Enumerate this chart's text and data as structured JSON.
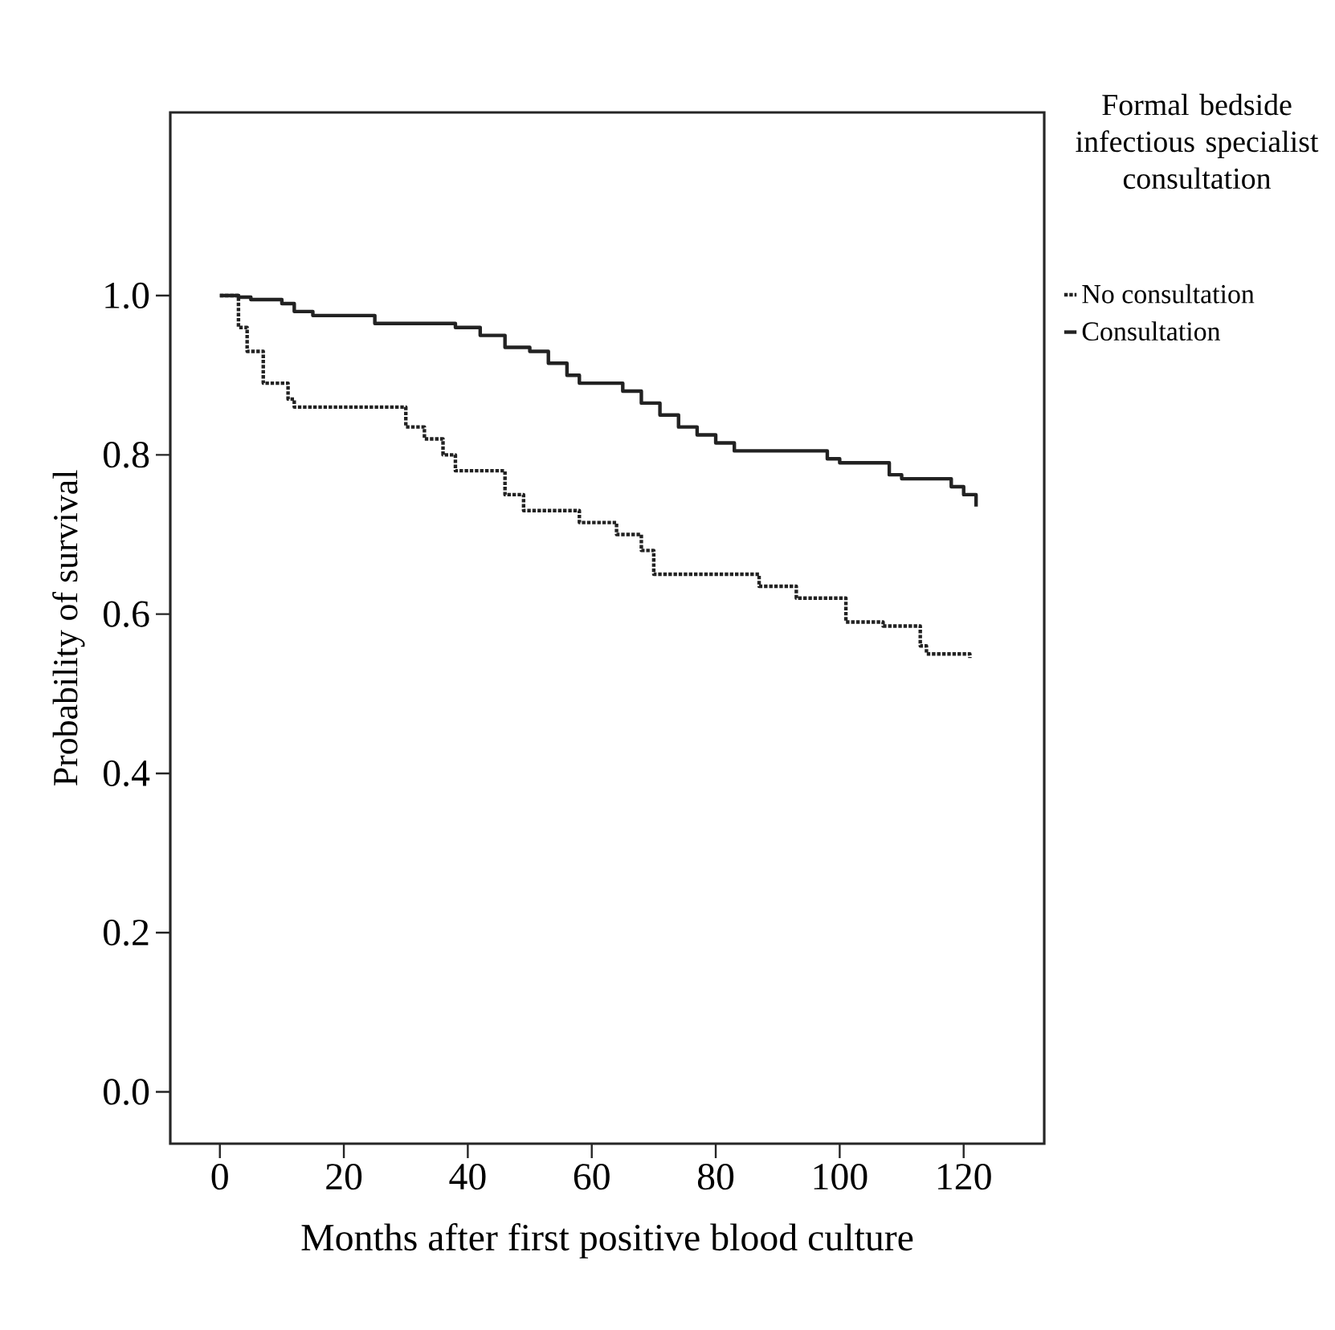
{
  "chart_data": {
    "type": "step",
    "xlabel": "Months after first positive blood culture",
    "ylabel": "Probability of survival",
    "legend_title": "Formal bedside infectious specialist consultation",
    "legend": "right",
    "xlim": [
      -8,
      133
    ],
    "ylim": [
      -0.065,
      1.23
    ],
    "xticks": [
      0,
      20,
      40,
      60,
      80,
      100,
      120
    ],
    "yticks": [
      {
        "value": 0,
        "label": "0.0"
      },
      {
        "value": 0.2,
        "label": "0.2"
      },
      {
        "value": 0.4,
        "label": "0.4"
      },
      {
        "value": 0.6,
        "label": "0.6"
      },
      {
        "value": 0.8,
        "label": "0.8"
      },
      {
        "value": 1,
        "label": "1.0"
      }
    ],
    "grid": false,
    "series": [
      {
        "name": "No consultation",
        "color": "#222222",
        "line_style": "dotted",
        "x": [
          0,
          3,
          4.4,
          7,
          11,
          12,
          30,
          33,
          36,
          38,
          46,
          49,
          58,
          64,
          68,
          70,
          87,
          93,
          101,
          107,
          113,
          114,
          121
        ],
        "values": [
          1.0,
          0.96,
          0.93,
          0.89,
          0.87,
          0.86,
          0.835,
          0.82,
          0.8,
          0.78,
          0.75,
          0.73,
          0.715,
          0.7,
          0.68,
          0.65,
          0.635,
          0.62,
          0.59,
          0.585,
          0.56,
          0.55,
          0.545
        ]
      },
      {
        "name": "Consultation",
        "color": "#222222",
        "line_style": "solid",
        "x": [
          0,
          3,
          5,
          10,
          12,
          15,
          25,
          38,
          42,
          46,
          50,
          53,
          56,
          58,
          65,
          68,
          71,
          74,
          77,
          80,
          83,
          98,
          100,
          108,
          110,
          118,
          120,
          122
        ],
        "values": [
          1.0,
          0.998,
          0.995,
          0.99,
          0.98,
          0.975,
          0.965,
          0.96,
          0.95,
          0.935,
          0.93,
          0.915,
          0.9,
          0.89,
          0.88,
          0.865,
          0.85,
          0.835,
          0.825,
          0.815,
          0.805,
          0.795,
          0.79,
          0.775,
          0.77,
          0.76,
          0.75,
          0.735
        ]
      }
    ]
  }
}
